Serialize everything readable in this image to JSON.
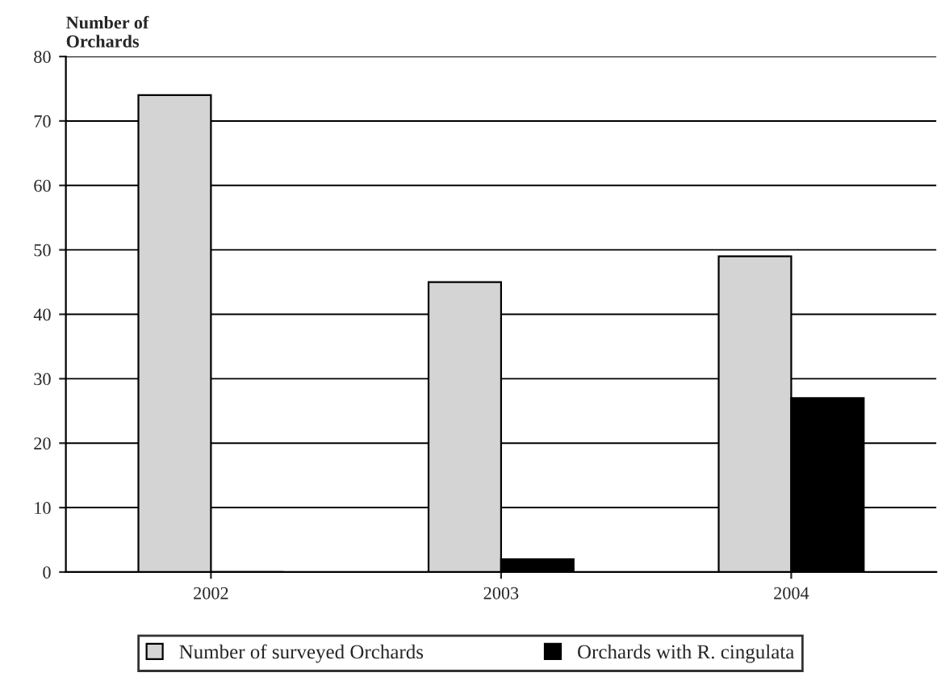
{
  "chart_data": {
    "type": "bar",
    "ylabel": "Number of\nOrchards",
    "categories": [
      "2002",
      "2003",
      "2004"
    ],
    "series": [
      {
        "name": "Number of surveyed Orchards",
        "color": "#d4d4d4",
        "values": [
          74,
          45,
          49
        ]
      },
      {
        "name": "Orchards with R. cingulata",
        "color": "#000000",
        "values": [
          0,
          2,
          27
        ]
      }
    ],
    "ylim": [
      0,
      80
    ],
    "yticks": [
      0,
      10,
      20,
      30,
      40,
      50,
      60,
      70,
      80
    ],
    "grid": "y",
    "legend": "bottom"
  }
}
